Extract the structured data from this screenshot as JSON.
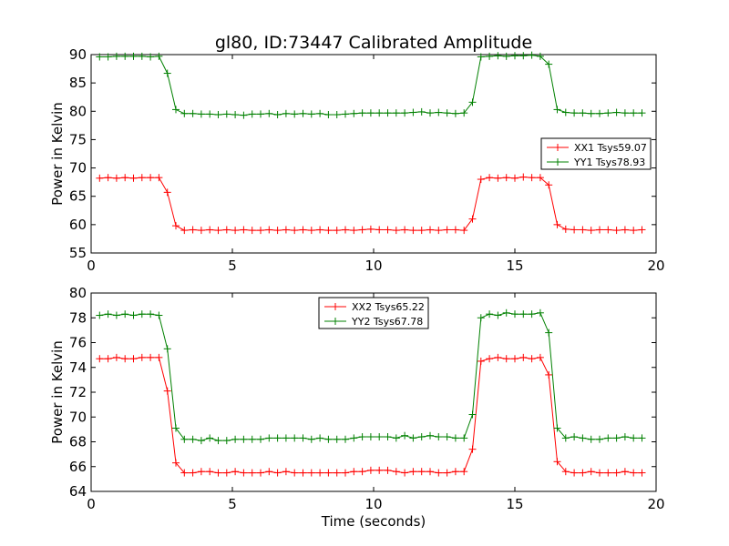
{
  "chart_data": [
    {
      "type": "line",
      "title": "gl80, ID:73447 Calibrated Amplitude",
      "xlabel": "",
      "ylabel": "Power in Kelvin",
      "xlim": [
        0,
        20
      ],
      "ylim": [
        55,
        90
      ],
      "xticks": [
        "0",
        "5",
        "10",
        "15",
        "20"
      ],
      "yticks": [
        "55",
        "60",
        "65",
        "70",
        "75",
        "80",
        "85",
        "90"
      ],
      "legend_position": "center-right",
      "x": [
        0.3,
        0.6,
        0.9,
        1.2,
        1.5,
        1.8,
        2.1,
        2.4,
        2.7,
        3.0,
        3.3,
        3.6,
        3.9,
        4.2,
        4.5,
        4.8,
        5.1,
        5.4,
        5.7,
        6.0,
        6.3,
        6.6,
        6.9,
        7.2,
        7.5,
        7.8,
        8.1,
        8.4,
        8.7,
        9.0,
        9.3,
        9.6,
        9.9,
        10.2,
        10.5,
        10.8,
        11.1,
        11.4,
        11.7,
        12.0,
        12.3,
        12.6,
        12.9,
        13.2,
        13.5,
        13.8,
        14.1,
        14.4,
        14.7,
        15.0,
        15.3,
        15.6,
        15.9,
        16.2,
        16.5,
        16.8,
        17.1,
        17.4,
        17.7,
        18.0,
        18.3,
        18.6,
        18.9,
        19.2,
        19.5
      ],
      "series": [
        {
          "name": "XX1 Tsys59.07",
          "color": "#ff0000",
          "values": [
            68.2,
            68.3,
            68.2,
            68.3,
            68.2,
            68.3,
            68.3,
            68.3,
            65.7,
            59.8,
            59.0,
            59.1,
            59.0,
            59.1,
            59.0,
            59.1,
            59.0,
            59.1,
            59.0,
            59.0,
            59.1,
            59.0,
            59.1,
            59.0,
            59.1,
            59.0,
            59.1,
            59.0,
            59.0,
            59.1,
            59.0,
            59.1,
            59.2,
            59.1,
            59.1,
            59.0,
            59.1,
            59.0,
            59.0,
            59.1,
            59.0,
            59.1,
            59.1,
            59.0,
            61.0,
            68.0,
            68.3,
            68.2,
            68.3,
            68.2,
            68.4,
            68.3,
            68.3,
            67.0,
            60.0,
            59.2,
            59.1,
            59.1,
            59.0,
            59.1,
            59.1,
            59.0,
            59.1,
            59.0,
            59.1
          ]
        },
        {
          "name": "YY1 Tsys78.93",
          "color": "#008000",
          "values": [
            89.6,
            89.6,
            89.7,
            89.7,
            89.7,
            89.7,
            89.6,
            89.7,
            86.7,
            80.3,
            79.6,
            79.6,
            79.5,
            79.5,
            79.4,
            79.5,
            79.4,
            79.3,
            79.5,
            79.5,
            79.6,
            79.4,
            79.6,
            79.5,
            79.6,
            79.5,
            79.6,
            79.4,
            79.4,
            79.5,
            79.6,
            79.7,
            79.7,
            79.7,
            79.7,
            79.7,
            79.7,
            79.8,
            79.9,
            79.7,
            79.8,
            79.7,
            79.6,
            79.7,
            81.6,
            89.6,
            89.7,
            89.8,
            89.7,
            89.8,
            89.8,
            89.9,
            89.7,
            88.3,
            80.3,
            79.8,
            79.7,
            79.7,
            79.6,
            79.6,
            79.7,
            79.8,
            79.7,
            79.7,
            79.7
          ]
        }
      ]
    },
    {
      "type": "line",
      "title": "",
      "xlabel": "Time (seconds)",
      "ylabel": "Power in Kelvin",
      "xlim": [
        0,
        20
      ],
      "ylim": [
        64,
        80
      ],
      "xticks": [
        "0",
        "5",
        "10",
        "15",
        "20"
      ],
      "yticks": [
        "64",
        "66",
        "68",
        "70",
        "72",
        "74",
        "76",
        "78",
        "80"
      ],
      "legend_position": "upper-center",
      "x": [
        0.3,
        0.6,
        0.9,
        1.2,
        1.5,
        1.8,
        2.1,
        2.4,
        2.7,
        3.0,
        3.3,
        3.6,
        3.9,
        4.2,
        4.5,
        4.8,
        5.1,
        5.4,
        5.7,
        6.0,
        6.3,
        6.6,
        6.9,
        7.2,
        7.5,
        7.8,
        8.1,
        8.4,
        8.7,
        9.0,
        9.3,
        9.6,
        9.9,
        10.2,
        10.5,
        10.8,
        11.1,
        11.4,
        11.7,
        12.0,
        12.3,
        12.6,
        12.9,
        13.2,
        13.5,
        13.8,
        14.1,
        14.4,
        14.7,
        15.0,
        15.3,
        15.6,
        15.9,
        16.2,
        16.5,
        16.8,
        17.1,
        17.4,
        17.7,
        18.0,
        18.3,
        18.6,
        18.9,
        19.2,
        19.5
      ],
      "series": [
        {
          "name": "XX2 Tsys65.22",
          "color": "#ff0000",
          "values": [
            74.7,
            74.7,
            74.8,
            74.7,
            74.7,
            74.8,
            74.8,
            74.8,
            72.1,
            66.3,
            65.5,
            65.5,
            65.6,
            65.6,
            65.5,
            65.5,
            65.6,
            65.5,
            65.5,
            65.5,
            65.6,
            65.5,
            65.6,
            65.5,
            65.5,
            65.5,
            65.5,
            65.5,
            65.5,
            65.5,
            65.6,
            65.6,
            65.7,
            65.7,
            65.7,
            65.6,
            65.5,
            65.6,
            65.6,
            65.6,
            65.5,
            65.5,
            65.6,
            65.6,
            67.4,
            74.5,
            74.7,
            74.8,
            74.7,
            74.7,
            74.8,
            74.7,
            74.8,
            73.4,
            66.4,
            65.6,
            65.5,
            65.5,
            65.6,
            65.5,
            65.5,
            65.5,
            65.6,
            65.5,
            65.5
          ]
        },
        {
          "name": "YY2 Tsys67.78",
          "color": "#008000",
          "values": [
            78.2,
            78.3,
            78.2,
            78.3,
            78.2,
            78.3,
            78.3,
            78.2,
            75.5,
            69.1,
            68.2,
            68.2,
            68.1,
            68.3,
            68.1,
            68.1,
            68.2,
            68.2,
            68.2,
            68.2,
            68.3,
            68.3,
            68.3,
            68.3,
            68.3,
            68.2,
            68.3,
            68.2,
            68.2,
            68.2,
            68.3,
            68.4,
            68.4,
            68.4,
            68.4,
            68.3,
            68.5,
            68.3,
            68.4,
            68.5,
            68.4,
            68.4,
            68.3,
            68.3,
            70.2,
            78.0,
            78.3,
            78.2,
            78.4,
            78.3,
            78.3,
            78.3,
            78.4,
            76.8,
            69.1,
            68.3,
            68.4,
            68.3,
            68.2,
            68.2,
            68.3,
            68.3,
            68.4,
            68.3,
            68.3
          ]
        }
      ]
    }
  ]
}
